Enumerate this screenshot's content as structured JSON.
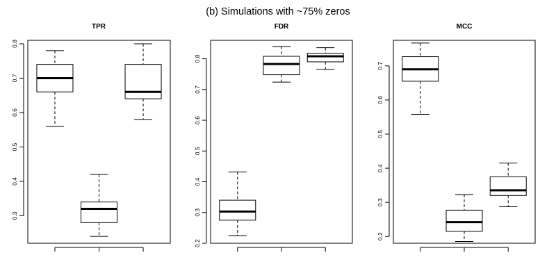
{
  "figure_title": "(b) Simulations with ~75% zeros",
  "chart_data": [
    {
      "type": "boxplot",
      "title": "TPR",
      "xlabel": "",
      "ylabel": "",
      "yticks": [
        0.3,
        0.4,
        0.5,
        0.6,
        0.7,
        0.8
      ],
      "ylim": [
        0.22,
        0.81
      ],
      "boxes": [
        {
          "min": 0.56,
          "q1": 0.66,
          "median": 0.7,
          "q3": 0.74,
          "max": 0.78
        },
        {
          "min": 0.24,
          "q1": 0.28,
          "median": 0.32,
          "q3": 0.34,
          "max": 0.42
        },
        {
          "min": 0.58,
          "q1": 0.64,
          "median": 0.66,
          "q3": 0.74,
          "max": 0.8
        }
      ]
    },
    {
      "type": "boxplot",
      "title": "FDR",
      "xlabel": "",
      "ylabel": "",
      "yticks": [
        0.2,
        0.3,
        0.4,
        0.5,
        0.6,
        0.7,
        0.8
      ],
      "ylim": [
        0.2,
        0.86
      ],
      "boxes": [
        {
          "min": 0.225,
          "q1": 0.275,
          "median": 0.303,
          "q3": 0.34,
          "max": 0.432
        },
        {
          "min": 0.724,
          "q1": 0.748,
          "median": 0.783,
          "q3": 0.808,
          "max": 0.84
        },
        {
          "min": 0.766,
          "q1": 0.79,
          "median": 0.808,
          "q3": 0.818,
          "max": 0.836
        }
      ]
    },
    {
      "type": "boxplot",
      "title": "MCC",
      "xlabel": "",
      "ylabel": "",
      "yticks": [
        0.2,
        0.3,
        0.4,
        0.5,
        0.6,
        0.7
      ],
      "ylim": [
        0.18,
        0.775
      ],
      "boxes": [
        {
          "min": 0.558,
          "q1": 0.655,
          "median": 0.69,
          "q3": 0.727,
          "max": 0.767
        },
        {
          "min": 0.185,
          "q1": 0.215,
          "median": 0.242,
          "q3": 0.277,
          "max": 0.323
        },
        {
          "min": 0.287,
          "q1": 0.32,
          "median": 0.335,
          "q3": 0.375,
          "max": 0.415
        }
      ]
    }
  ]
}
